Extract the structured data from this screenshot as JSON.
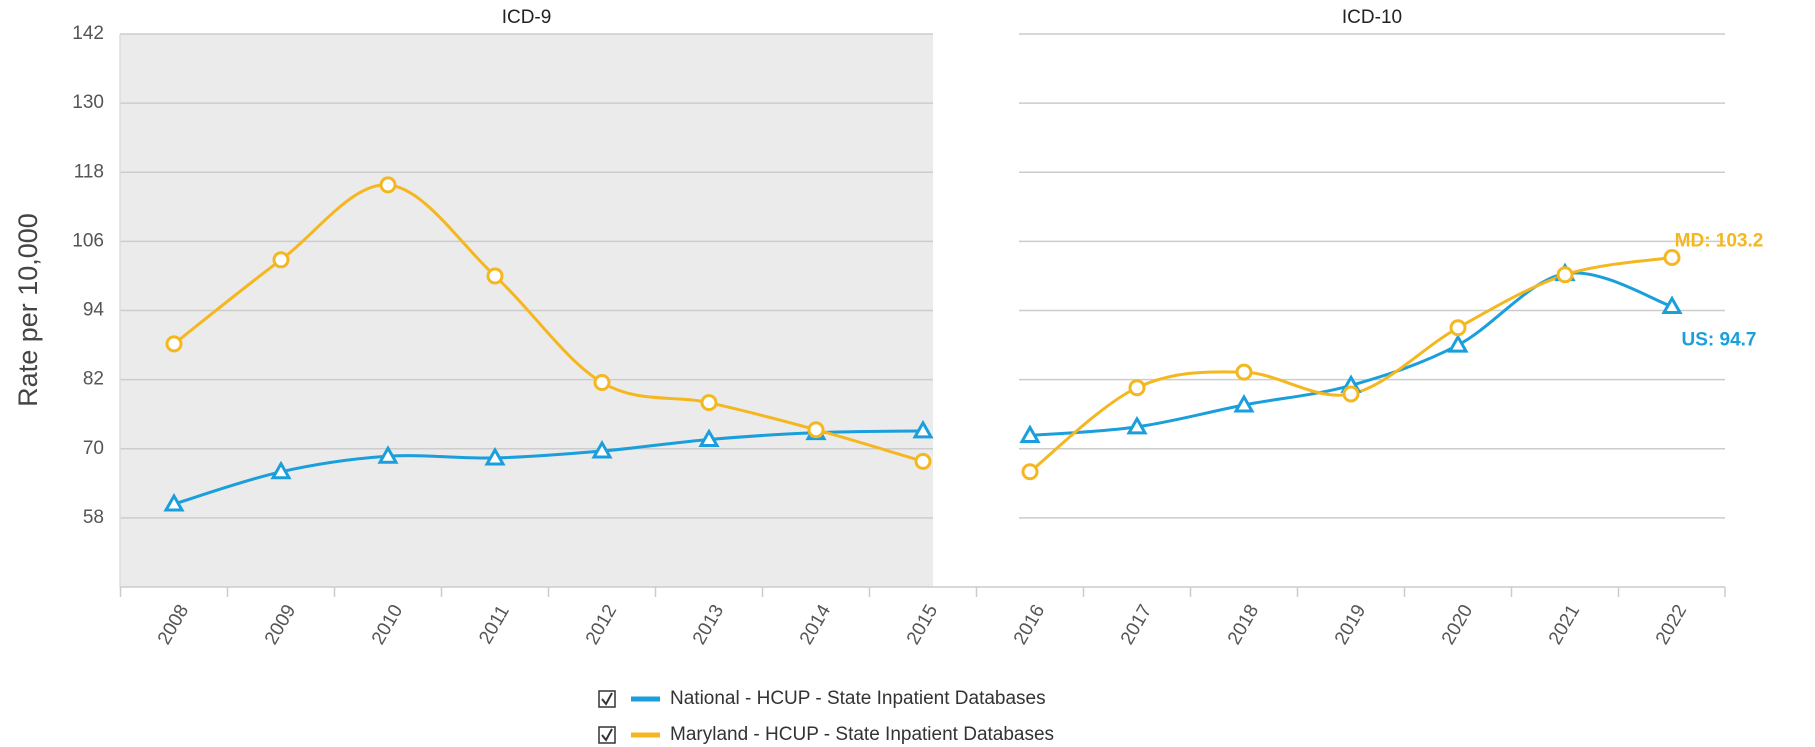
{
  "chart_data": {
    "type": "line",
    "y_label": "Rate per 10,000",
    "panels": [
      {
        "title": "ICD-9"
      },
      {
        "title": "ICD-10"
      }
    ],
    "categories": [
      "2008",
      "2009",
      "2010",
      "2011",
      "2012",
      "2013",
      "2014",
      "2015",
      "2016",
      "2017",
      "2018",
      "2019",
      "2020",
      "2021",
      "2022"
    ],
    "series": [
      {
        "name": "National - HCUP - State Inpatient Databases",
        "color": "#1a9fdc",
        "marker": "triangle",
        "values": [
          60.4,
          66,
          68.7,
          68.4,
          69.6,
          71.6,
          72.8,
          73.1,
          72.3,
          73.8,
          77.6,
          81,
          88,
          100.4,
          94.7
        ],
        "value_labels": [
          null,
          null,
          null,
          null,
          null,
          null,
          null,
          null,
          null,
          null,
          null,
          null,
          null,
          null,
          "US: 94.7"
        ]
      },
      {
        "name": "Maryland - HCUP - State Inpatient Databases",
        "color": "#f5b71f",
        "marker": "circle",
        "values": [
          88.2,
          102.8,
          115.8,
          100,
          81.5,
          78,
          73.3,
          67.8,
          66,
          80.6,
          83.3,
          79.5,
          91,
          100.2,
          103.2
        ],
        "value_labels": [
          null,
          null,
          null,
          null,
          null,
          null,
          null,
          null,
          null,
          null,
          null,
          null,
          null,
          null,
          "MD: 103.2"
        ]
      }
    ],
    "ylim": [
      46,
      142
    ],
    "yticks": [
      58,
      70,
      82,
      94,
      106,
      118,
      130,
      142
    ],
    "grid": true
  }
}
